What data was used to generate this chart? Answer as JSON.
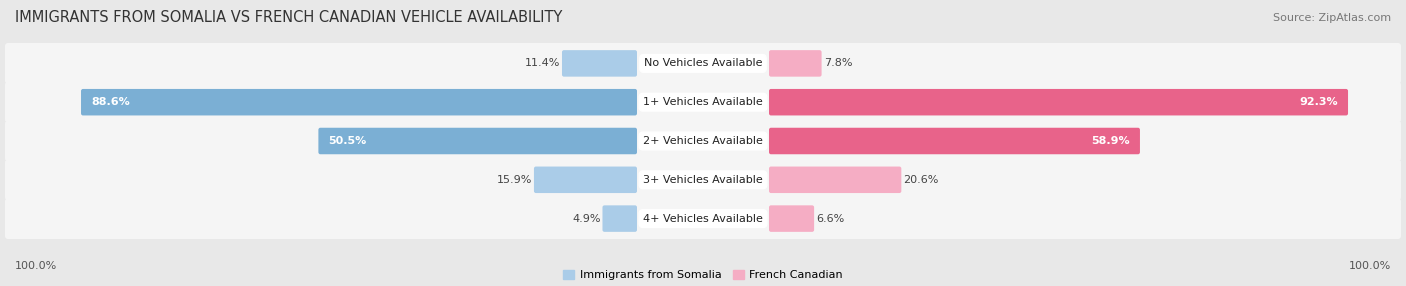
{
  "title": "IMMIGRANTS FROM SOMALIA VS FRENCH CANADIAN VEHICLE AVAILABILITY",
  "source": "Source: ZipAtlas.com",
  "categories": [
    "No Vehicles Available",
    "1+ Vehicles Available",
    "2+ Vehicles Available",
    "3+ Vehicles Available",
    "4+ Vehicles Available"
  ],
  "somalia_values": [
    11.4,
    88.6,
    50.5,
    15.9,
    4.9
  ],
  "french_values": [
    7.8,
    92.3,
    58.9,
    20.6,
    6.6
  ],
  "somalia_color_dark": "#7bafd4",
  "somalia_color_light": "#aacce8",
  "french_color_dark": "#e8638a",
  "french_color_light": "#f5adc4",
  "bg_color": "#e8e8e8",
  "row_bg_color": "#f5f5f5",
  "legend_somalia": "Immigrants from Somalia",
  "legend_french": "French Canadian",
  "title_fontsize": 10.5,
  "source_fontsize": 8,
  "label_fontsize": 8,
  "cat_fontsize": 8,
  "footer_fontsize": 8,
  "large_threshold": 30
}
